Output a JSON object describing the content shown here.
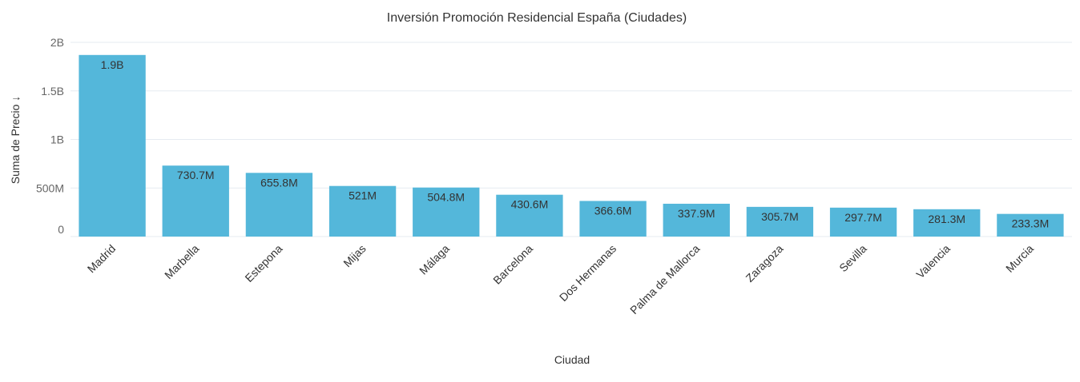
{
  "chart_data": {
    "type": "bar",
    "title": "Inversión Promoción Residencial España (Ciudades)",
    "xlabel": "Ciudad",
    "ylabel": "Suma de Precio ↓",
    "ylim": [
      0,
      2000000000
    ],
    "grid": true,
    "yticks": [
      {
        "value": 0,
        "label": "0"
      },
      {
        "value": 500000000,
        "label": "500M"
      },
      {
        "value": 1000000000,
        "label": "1B"
      },
      {
        "value": 1500000000,
        "label": "1.5B"
      },
      {
        "value": 2000000000,
        "label": "2B"
      }
    ],
    "categories": [
      "Madrid",
      "Marbella",
      "Estepona",
      "Mijas",
      "Málaga",
      "Barcelona",
      "Dos Hermanas",
      "Palma de Mallorca",
      "Zaragoza",
      "Sevilla",
      "Valencia",
      "Murcia"
    ],
    "values": [
      1870000000,
      730700000,
      655800000,
      521000000,
      504800000,
      430600000,
      366600000,
      337900000,
      305700000,
      297700000,
      281300000,
      233300000
    ],
    "data_labels": [
      "1.9B",
      "730.7M",
      "655.8M",
      "521M",
      "504.8M",
      "430.6M",
      "366.6M",
      "337.9M",
      "305.7M",
      "297.7M",
      "281.3M",
      "233.3M"
    ],
    "colors": {
      "bar": "#54b7da",
      "grid": "#e6ebf1",
      "text": "#333333",
      "axis_text": "#666666"
    }
  }
}
